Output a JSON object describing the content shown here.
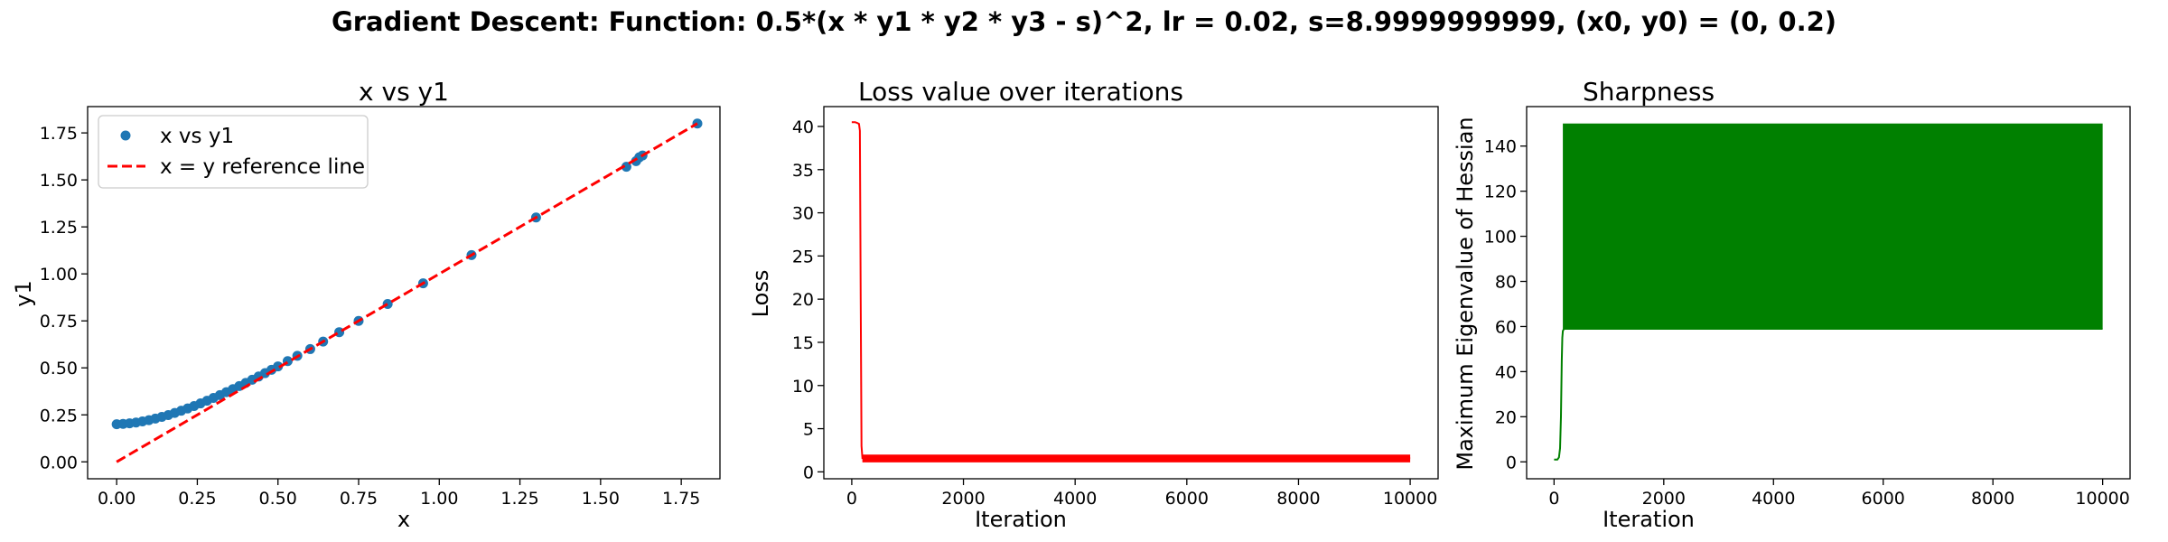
{
  "figure": {
    "suptitle": "Gradient Descent: Function: 0.5*(x * y1 * y2 * y3 - s)^2, lr = 0.02, s=8.9999999999, (x0, y0) = (0, 0.2)"
  },
  "chart_data": [
    {
      "type": "scatter",
      "title": "x vs y1",
      "xlabel": "x",
      "ylabel": "y1",
      "xlim": [
        -0.09,
        1.87
      ],
      "ylim": [
        -0.09,
        1.89
      ],
      "xticks": [
        0.0,
        0.25,
        0.5,
        0.75,
        1.0,
        1.25,
        1.5,
        1.75
      ],
      "xtick_labels": [
        "0.00",
        "0.25",
        "0.50",
        "0.75",
        "1.00",
        "1.25",
        "1.50",
        "1.75"
      ],
      "yticks": [
        0.0,
        0.25,
        0.5,
        0.75,
        1.0,
        1.25,
        1.5,
        1.75
      ],
      "ytick_labels": [
        "0.00",
        "0.25",
        "0.50",
        "0.75",
        "1.00",
        "1.25",
        "1.50",
        "1.75"
      ],
      "legend_position": "upper-left",
      "series": [
        {
          "name": "x vs y1",
          "kind": "scatter",
          "color": "#1f77b4",
          "x": [
            0.0,
            0.02,
            0.04,
            0.06,
            0.08,
            0.1,
            0.12,
            0.14,
            0.16,
            0.18,
            0.2,
            0.22,
            0.24,
            0.26,
            0.28,
            0.3,
            0.32,
            0.34,
            0.36,
            0.38,
            0.4,
            0.42,
            0.44,
            0.46,
            0.48,
            0.5,
            0.53,
            0.56,
            0.6,
            0.64,
            0.69,
            0.75,
            0.84,
            0.95,
            1.1,
            1.3,
            1.58,
            1.61,
            1.62,
            1.63,
            1.8
          ],
          "y": [
            0.2,
            0.202,
            0.205,
            0.209,
            0.215,
            0.222,
            0.23,
            0.239,
            0.249,
            0.26,
            0.272,
            0.284,
            0.297,
            0.311,
            0.325,
            0.34,
            0.355,
            0.371,
            0.387,
            0.403,
            0.42,
            0.437,
            0.454,
            0.472,
            0.49,
            0.508,
            0.536,
            0.564,
            0.6,
            0.64,
            0.69,
            0.75,
            0.84,
            0.95,
            1.1,
            1.3,
            1.57,
            1.6,
            1.62,
            1.63,
            1.8
          ]
        },
        {
          "name": "x = y reference line",
          "kind": "line",
          "style": "dashed",
          "color": "#ff0000",
          "x": [
            0.0,
            1.8
          ],
          "y": [
            0.0,
            1.8
          ]
        }
      ]
    },
    {
      "type": "line",
      "title": "Loss value over iterations",
      "xlabel": "Iteration",
      "ylabel": "Loss",
      "xlim": [
        -500,
        10500
      ],
      "ylim": [
        -0.8,
        42.3
      ],
      "xticks": [
        0,
        2000,
        4000,
        6000,
        8000,
        10000
      ],
      "xtick_labels": [
        "0",
        "2000",
        "4000",
        "6000",
        "8000",
        "10000"
      ],
      "yticks": [
        0,
        5,
        10,
        15,
        20,
        25,
        30,
        35,
        40
      ],
      "ytick_labels": [
        "0",
        "5",
        "10",
        "15",
        "20",
        "25",
        "30",
        "35",
        "40"
      ],
      "series": [
        {
          "name": "Loss",
          "color": "#ff0000",
          "x": [
            0,
            20,
            60,
            100,
            130,
            145,
            160,
            175,
            190,
            10000
          ],
          "y": [
            40.5,
            40.5,
            40.5,
            40.4,
            40.3,
            39.5,
            20.0,
            3.0,
            1.6,
            1.6
          ],
          "oscillation_band": {
            "x_start": 190,
            "x_end": 10000,
            "y_low": 1.1,
            "y_high": 2.0
          }
        }
      ]
    },
    {
      "type": "line",
      "title": "Sharpness",
      "xlabel": "Iteration",
      "ylabel": "Maximum Eigenvalue of Hessian",
      "xlim": [
        -500,
        10500
      ],
      "ylim": [
        -7.5,
        157.5
      ],
      "xticks": [
        0,
        2000,
        4000,
        6000,
        8000,
        10000
      ],
      "xtick_labels": [
        "0",
        "2000",
        "4000",
        "6000",
        "8000",
        "10000"
      ],
      "yticks": [
        0,
        20,
        40,
        60,
        80,
        100,
        120,
        140
      ],
      "ytick_labels": [
        "0",
        "20",
        "40",
        "60",
        "80",
        "100",
        "120",
        "140"
      ],
      "series": [
        {
          "name": "Sharpness",
          "color": "#008000",
          "x": [
            0,
            60,
            90,
            110,
            125,
            140,
            150,
            160,
            180,
            10000
          ],
          "y": [
            1.0,
            1.0,
            2.0,
            6.0,
            20.0,
            45.0,
            55.0,
            58.0,
            59.0,
            59.0
          ],
          "oscillation_band": {
            "x_start": 160,
            "x_end": 10000,
            "y_low": 59.0,
            "y_high": 150.0
          }
        }
      ]
    }
  ]
}
